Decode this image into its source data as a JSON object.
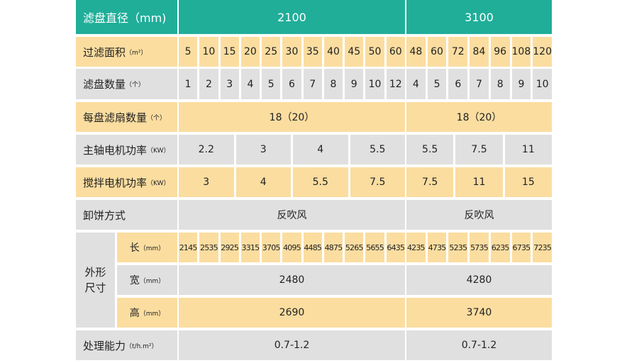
{
  "header": {
    "label": "滤盘直径（mm)",
    "col1": "2100",
    "col2": "3100"
  },
  "rows": {
    "area": {
      "label": "过滤面积",
      "unit": "（m²）",
      "v1": [
        "5",
        "10",
        "15",
        "20",
        "25",
        "30",
        "35",
        "40",
        "45",
        "50",
        "60"
      ],
      "v2": [
        "48",
        "60",
        "72",
        "84",
        "96",
        "108",
        "120"
      ]
    },
    "count": {
      "label": "滤盘数量",
      "unit": "（个）",
      "v1": [
        "1",
        "2",
        "3",
        "4",
        "5",
        "6",
        "7",
        "8",
        "9",
        "10",
        "12"
      ],
      "v2": [
        "4",
        "5",
        "6",
        "7",
        "8",
        "9",
        "10"
      ]
    },
    "fans": {
      "label": "每盘滤扇数量",
      "unit": "（个）",
      "v1": "18（20）",
      "v2": "18（20）"
    },
    "main_motor": {
      "label": "主轴电机功率",
      "unit": "（KW）",
      "v1": [
        "2.2",
        "3",
        "4",
        "5.5"
      ],
      "v2": [
        "5.5",
        "7.5",
        "11"
      ]
    },
    "mix_motor": {
      "label": "搅拌电机功率",
      "unit": "（KW）",
      "v1": [
        "3",
        "4",
        "5.5",
        "7.5"
      ],
      "v2": [
        "7.5",
        "11",
        "15"
      ]
    },
    "discharge": {
      "label": "卸饼方式",
      "v1": "反吹风",
      "v2": "反吹风"
    },
    "dims": {
      "label": "外形尺寸",
      "length": {
        "label": "长",
        "unit": "（mm）",
        "v1": [
          "2145",
          "2535",
          "2925",
          "3315",
          "3705",
          "4095",
          "4485",
          "4875",
          "5265",
          "5655",
          "6435"
        ],
        "v2": [
          "4235",
          "4735",
          "5235",
          "5735",
          "6235",
          "6735",
          "7235"
        ]
      },
      "width": {
        "label": "宽",
        "unit": "（mm）",
        "v1": "2480",
        "v2": "4280"
      },
      "height": {
        "label": "高",
        "unit": "（mm）",
        "v1": "2690",
        "v2": "3740"
      }
    },
    "capacity": {
      "label": "处理能力",
      "unit": "（t/h.m²）",
      "v1": "0.7-1.2",
      "v2": "0.7-1.2"
    }
  },
  "colors": {
    "header": "#20ae99",
    "yellow": "#fbdda0",
    "gray": "#e0e0e0"
  }
}
